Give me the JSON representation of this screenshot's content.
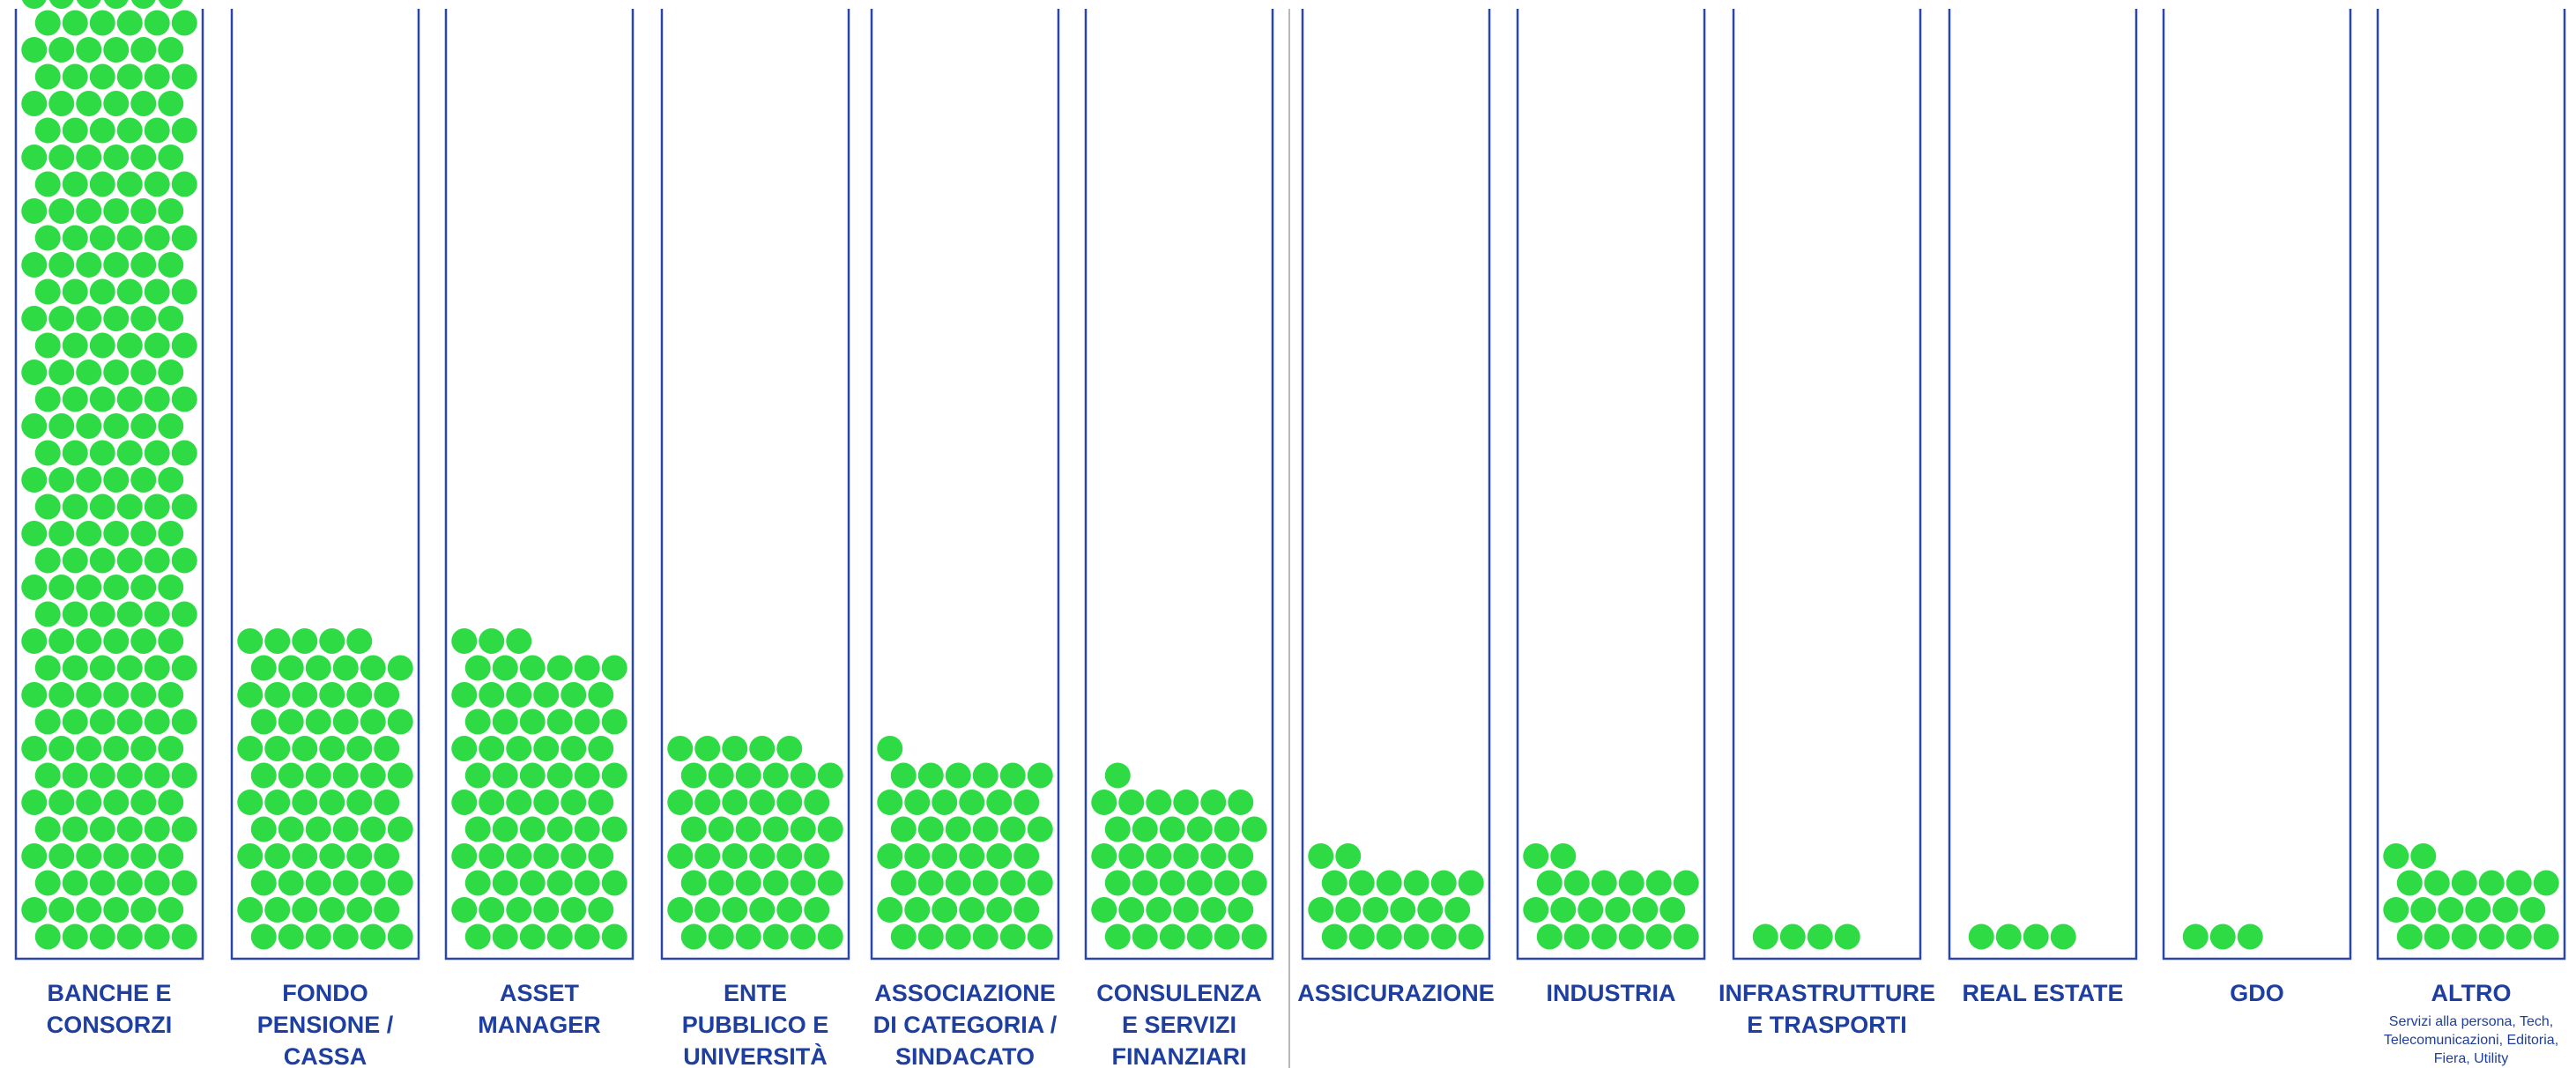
{
  "colors": {
    "box": "#2a46a8",
    "dot": "#2edb45",
    "label": "#1f3fa0",
    "divider": "#b8b8b8"
  },
  "chart_data": {
    "type": "dot-column",
    "unit": "one dot per member",
    "grid": false,
    "categories": [
      {
        "label_lines": [
          "BANCHE E",
          "CONSORZI"
        ],
        "sublabel_lines": [],
        "value": 223,
        "group": "left"
      },
      {
        "label_lines": [
          "FONDO",
          "PENSIONE /",
          "CASSA"
        ],
        "sublabel_lines": [],
        "value": 71,
        "group": "left"
      },
      {
        "label_lines": [
          "ASSET",
          "MANAGER"
        ],
        "sublabel_lines": [],
        "value": 69,
        "group": "left"
      },
      {
        "label_lines": [
          "ENTE",
          "PUBBLICO E",
          "UNIVERSITÀ"
        ],
        "sublabel_lines": [],
        "value": 47,
        "group": "left"
      },
      {
        "label_lines": [
          "ASSOCIAZIONE",
          "DI CATEGORIA /",
          "SINDACATO"
        ],
        "sublabel_lines": [],
        "value": 43,
        "group": "left"
      },
      {
        "label_lines": [
          "CONSULENZA",
          "E SERVIZI",
          "FINANZIARI"
        ],
        "sublabel_lines": [],
        "value": 37,
        "group": "left"
      },
      {
        "label_lines": [
          "ASSICURAZIONE"
        ],
        "sublabel_lines": [],
        "value": 20,
        "group": "right"
      },
      {
        "label_lines": [
          "INDUSTRIA"
        ],
        "sublabel_lines": [],
        "value": 20,
        "group": "right"
      },
      {
        "label_lines": [
          "INFRASTRUTTURE",
          "E TRASPORTI"
        ],
        "sublabel_lines": [],
        "value": 4,
        "group": "right"
      },
      {
        "label_lines": [
          "REAL ESTATE"
        ],
        "sublabel_lines": [],
        "value": 4,
        "group": "right"
      },
      {
        "label_lines": [
          "GDO"
        ],
        "sublabel_lines": [],
        "value": 3,
        "group": "right"
      },
      {
        "label_lines": [
          "ALTRO"
        ],
        "sublabel_lines": [
          "Servizi alla persona, Tech,",
          "Telecomunicazioni, Editoria,",
          "Fiera, Utility"
        ],
        "value": 20,
        "group": "right"
      }
    ]
  }
}
